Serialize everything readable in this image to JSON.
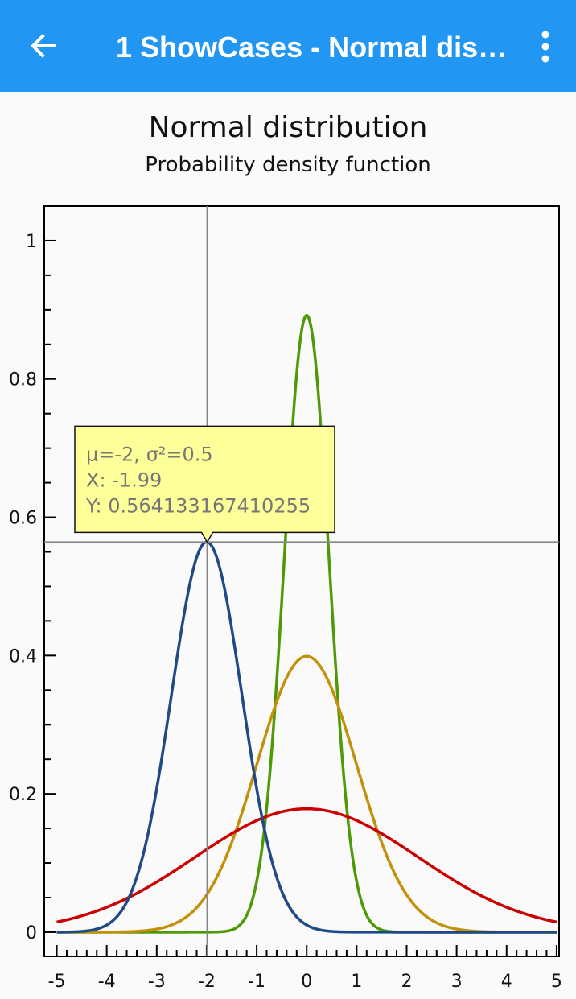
{
  "appbar": {
    "title": "1 ShowCases - Normal distribution",
    "back_icon": "arrow-back-icon",
    "menu_icon": "more-vert-icon",
    "color": "#2196f3"
  },
  "chart_data": {
    "type": "line",
    "title": "Normal distribution",
    "subtitle": "Probability density function",
    "xlabel": "",
    "ylabel": "",
    "xlim": [
      -5.25,
      5.05
    ],
    "ylim": [
      -0.035,
      1.05
    ],
    "x_ticks": [
      "-5",
      "-4",
      "-3",
      "-2",
      "-1",
      "0",
      "1",
      "2",
      "3",
      "4",
      "5"
    ],
    "y_ticks": [
      "0",
      "0.2",
      "0.4",
      "0.6",
      "0.8",
      "1"
    ],
    "grid": false,
    "legend": "none",
    "series": [
      {
        "mu": 0,
        "sigma2": 0.2,
        "color": "#4e9a06"
      },
      {
        "mu": 0,
        "sigma2": 1.0,
        "color": "#c4900a"
      },
      {
        "mu": 0,
        "sigma2": 5.0,
        "color": "#cc0000"
      },
      {
        "mu": -2,
        "sigma2": 0.5,
        "color": "#204a87"
      }
    ],
    "crosshair": {
      "x": -1.99,
      "y": 0.564133167410255
    },
    "tooltip": {
      "line1": "μ=-2, σ²=0.5",
      "line2": "X: -1.99",
      "line3": "Y: 0.564133167410255"
    }
  }
}
